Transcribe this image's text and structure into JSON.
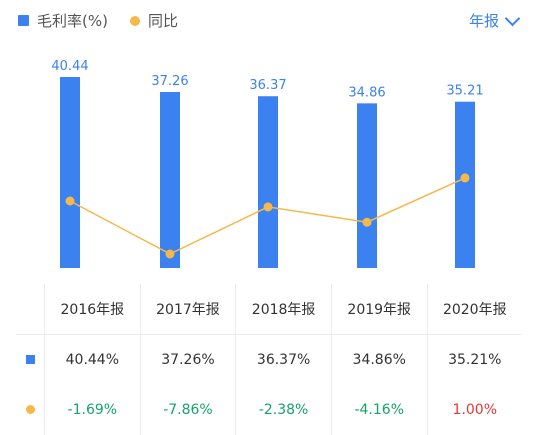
{
  "legend": {
    "series1_label": "毛利率(%)",
    "series2_label": "同比"
  },
  "period_selector": {
    "label": "年报"
  },
  "colors": {
    "bar": "#3b82f0",
    "line": "#f5b84a",
    "negative": "#16a36b",
    "positive": "#e53935"
  },
  "chart_data": {
    "type": "bar",
    "categories": [
      "2016年报",
      "2017年报",
      "2018年报",
      "2019年报",
      "2020年报"
    ],
    "series": [
      {
        "name": "毛利率(%)",
        "type": "bar",
        "values": [
          40.44,
          37.26,
          36.37,
          34.86,
          35.21
        ]
      },
      {
        "name": "同比",
        "type": "line",
        "values": [
          -1.69,
          -7.86,
          -2.38,
          -4.16,
          1.0
        ]
      }
    ],
    "bar_labels": [
      "40.44",
      "37.26",
      "36.37",
      "34.86",
      "35.21"
    ],
    "legend_position": "top-left",
    "grid": false
  },
  "table": {
    "headers": [
      "2016年报",
      "2017年报",
      "2018年报",
      "2019年报",
      "2020年报"
    ],
    "row1": [
      "40.44%",
      "37.26%",
      "36.37%",
      "34.86%",
      "35.21%"
    ],
    "row2": [
      "-1.69%",
      "-7.86%",
      "-2.38%",
      "-4.16%",
      "1.00%"
    ]
  }
}
